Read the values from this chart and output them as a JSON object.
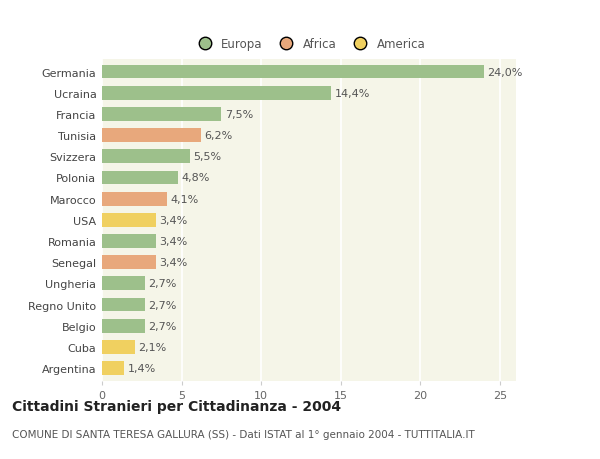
{
  "categories": [
    "Germania",
    "Ucraina",
    "Francia",
    "Tunisia",
    "Svizzera",
    "Polonia",
    "Marocco",
    "USA",
    "Romania",
    "Senegal",
    "Ungheria",
    "Regno Unito",
    "Belgio",
    "Cuba",
    "Argentina"
  ],
  "values": [
    24.0,
    14.4,
    7.5,
    6.2,
    5.5,
    4.8,
    4.1,
    3.4,
    3.4,
    3.4,
    2.7,
    2.7,
    2.7,
    2.1,
    1.4
  ],
  "labels": [
    "24,0%",
    "14,4%",
    "7,5%",
    "6,2%",
    "5,5%",
    "4,8%",
    "4,1%",
    "3,4%",
    "3,4%",
    "3,4%",
    "2,7%",
    "2,7%",
    "2,7%",
    "2,1%",
    "1,4%"
  ],
  "continent": [
    "Europa",
    "Europa",
    "Europa",
    "Africa",
    "Europa",
    "Europa",
    "Africa",
    "America",
    "Europa",
    "Africa",
    "Europa",
    "Europa",
    "Europa",
    "America",
    "America"
  ],
  "colors": {
    "Europa": "#9dc08b",
    "Africa": "#e8a87c",
    "America": "#f0d060"
  },
  "xlim": [
    0,
    26
  ],
  "xticks": [
    0,
    5,
    10,
    15,
    20,
    25
  ],
  "title": "Cittadini Stranieri per Cittadinanza - 2004",
  "subtitle": "COMUNE DI SANTA TERESA GALLURA (SS) - Dati ISTAT al 1° gennaio 2004 - TUTTITALIA.IT",
  "bg_color": "#ffffff",
  "plot_bg_color": "#f5f5e8",
  "grid_color": "#ffffff",
  "bar_height": 0.65,
  "label_fontsize": 8,
  "tick_fontsize": 8,
  "title_fontsize": 10,
  "subtitle_fontsize": 7.5,
  "legend_fontsize": 8.5
}
